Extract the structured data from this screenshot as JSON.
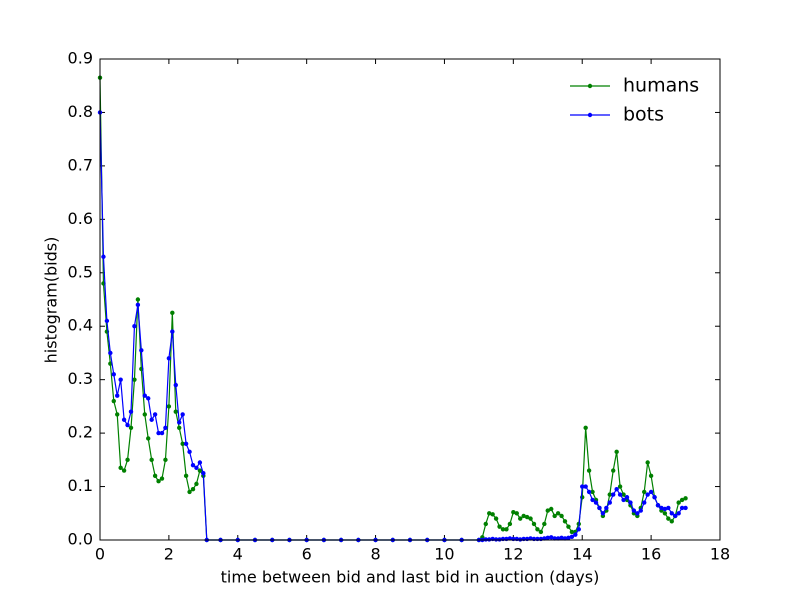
{
  "chart_data": {
    "type": "line",
    "xlabel": "time between bid and last bid in auction (days)",
    "ylabel": "histogram(bids)",
    "x": [
      0,
      0.1,
      0.2,
      0.3,
      0.4,
      0.5,
      0.6,
      0.7,
      0.8,
      0.9,
      1.0,
      1.1,
      1.2,
      1.3,
      1.4,
      1.5,
      1.6,
      1.7,
      1.8,
      1.9,
      2.0,
      2.1,
      2.2,
      2.3,
      2.4,
      2.5,
      2.6,
      2.7,
      2.8,
      2.9,
      3.0,
      3.1,
      3.5,
      4.0,
      4.5,
      5.0,
      5.5,
      6.0,
      6.5,
      7.0,
      7.5,
      8.0,
      8.5,
      9.0,
      9.5,
      10.0,
      10.5,
      11.0,
      11.1,
      11.2,
      11.3,
      11.4,
      11.5,
      11.6,
      11.7,
      11.8,
      11.9,
      12.0,
      12.1,
      12.2,
      12.3,
      12.4,
      12.5,
      12.6,
      12.7,
      12.8,
      12.9,
      13.0,
      13.1,
      13.2,
      13.3,
      13.4,
      13.5,
      13.6,
      13.7,
      13.8,
      13.9,
      14.0,
      14.1,
      14.2,
      14.3,
      14.4,
      14.5,
      14.6,
      14.7,
      14.8,
      14.9,
      15.0,
      15.1,
      15.2,
      15.3,
      15.4,
      15.5,
      15.6,
      15.7,
      15.8,
      15.9,
      16.0,
      16.1,
      16.2,
      16.3,
      16.4,
      16.5,
      16.6,
      16.7,
      16.8,
      16.9,
      17.0
    ],
    "series": [
      {
        "name": "humans",
        "color": "#008000",
        "values": [
          0.865,
          0.48,
          0.39,
          0.33,
          0.26,
          0.235,
          0.135,
          0.13,
          0.15,
          0.21,
          0.3,
          0.45,
          0.32,
          0.235,
          0.19,
          0.15,
          0.12,
          0.11,
          0.115,
          0.15,
          0.25,
          0.425,
          0.24,
          0.21,
          0.18,
          0.12,
          0.09,
          0.095,
          0.105,
          0.13,
          0.12,
          0,
          0,
          0,
          0,
          0,
          0,
          0,
          0,
          0,
          0,
          0,
          0,
          0,
          0,
          0,
          0,
          0,
          0.005,
          0.03,
          0.05,
          0.048,
          0.04,
          0.025,
          0.02,
          0.02,
          0.03,
          0.052,
          0.05,
          0.04,
          0.045,
          0.043,
          0.04,
          0.03,
          0.02,
          0.015,
          0.03,
          0.055,
          0.058,
          0.045,
          0.05,
          0.045,
          0.035,
          0.025,
          0.015,
          0.015,
          0.03,
          0.08,
          0.21,
          0.13,
          0.09,
          0.075,
          0.06,
          0.045,
          0.055,
          0.085,
          0.13,
          0.165,
          0.1,
          0.085,
          0.075,
          0.065,
          0.05,
          0.045,
          0.06,
          0.09,
          0.145,
          0.12,
          0.08,
          0.065,
          0.055,
          0.05,
          0.04,
          0.035,
          0.045,
          0.07,
          0.075,
          0.078
        ]
      },
      {
        "name": "bots",
        "color": "#0000ff",
        "values": [
          0.8,
          0.53,
          0.41,
          0.35,
          0.31,
          0.27,
          0.3,
          0.225,
          0.215,
          0.24,
          0.4,
          0.44,
          0.355,
          0.27,
          0.265,
          0.225,
          0.235,
          0.2,
          0.2,
          0.21,
          0.34,
          0.39,
          0.29,
          0.22,
          0.235,
          0.18,
          0.165,
          0.14,
          0.135,
          0.145,
          0.125,
          0,
          0,
          0,
          0,
          0,
          0,
          0,
          0,
          0,
          0,
          0,
          0,
          0,
          0,
          0,
          0,
          0,
          0,
          0.001,
          0.001,
          0.002,
          0.001,
          0.001,
          0.002,
          0.002,
          0.003,
          0.002,
          0.002,
          0.001,
          0.002,
          0.002,
          0.003,
          0.002,
          0.002,
          0.002,
          0.003,
          0.004,
          0.005,
          0.003,
          0.003,
          0.004,
          0.003,
          0.004,
          0.006,
          0.01,
          0.02,
          0.1,
          0.1,
          0.09,
          0.075,
          0.07,
          0.06,
          0.05,
          0.06,
          0.07,
          0.085,
          0.095,
          0.085,
          0.075,
          0.08,
          0.07,
          0.055,
          0.05,
          0.055,
          0.07,
          0.085,
          0.09,
          0.08,
          0.065,
          0.06,
          0.058,
          0.06,
          0.05,
          0.045,
          0.05,
          0.06,
          0.06
        ]
      }
    ],
    "xlim": [
      0,
      18
    ],
    "xticks": [
      0,
      2,
      4,
      6,
      8,
      10,
      12,
      14,
      16,
      18
    ],
    "ylim": [
      0,
      0.9
    ],
    "yticks": [
      {
        "value": 0,
        "label": "0.0"
      },
      0.1,
      0.2,
      0.3,
      0.4,
      0.5,
      0.6,
      0.7,
      0.8,
      0.9
    ],
    "legend": "upper right"
  }
}
